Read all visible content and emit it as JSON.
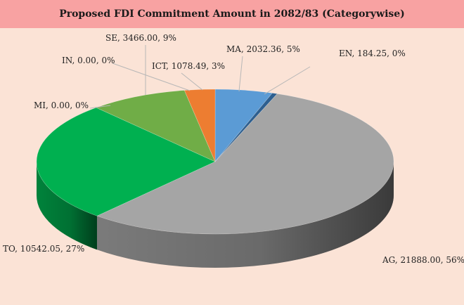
{
  "chart_data": {
    "type": "pie",
    "title": "Proposed FDI Commitment Amount in 2082/83 (Categorywise)",
    "slices": [
      {
        "name": "MA",
        "value": 2032.36,
        "label": "MA, 2032.36, 5%",
        "color": "#5b9bd5"
      },
      {
        "name": "EN",
        "value": 184.25,
        "label": "EN, 184.25, 0%",
        "color": "#2e5f8f"
      },
      {
        "name": "AG",
        "value": 21888.0,
        "label": "AG, 21888.00, 56%",
        "color": "#a5a5a5"
      },
      {
        "name": "TO",
        "value": 10542.05,
        "label": "TO, 10542.05, 27%",
        "color": "#00b050"
      },
      {
        "name": "MI",
        "value": 0.0,
        "label": "MI, 0.00, 0%",
        "color": "#4472c4"
      },
      {
        "name": "SE",
        "value": 3466.0,
        "label": "SE, 3466.00, 9%",
        "color": "#70ad47"
      },
      {
        "name": "IN",
        "value": 0.0,
        "label": "IN, 0.00, 0%",
        "color": "#ffc000"
      },
      {
        "name": "ICT",
        "value": 1078.49,
        "label": "ICT, 1078.49, 3%",
        "color": "#ed7d31"
      }
    ],
    "legend": "none",
    "style": "3d"
  }
}
